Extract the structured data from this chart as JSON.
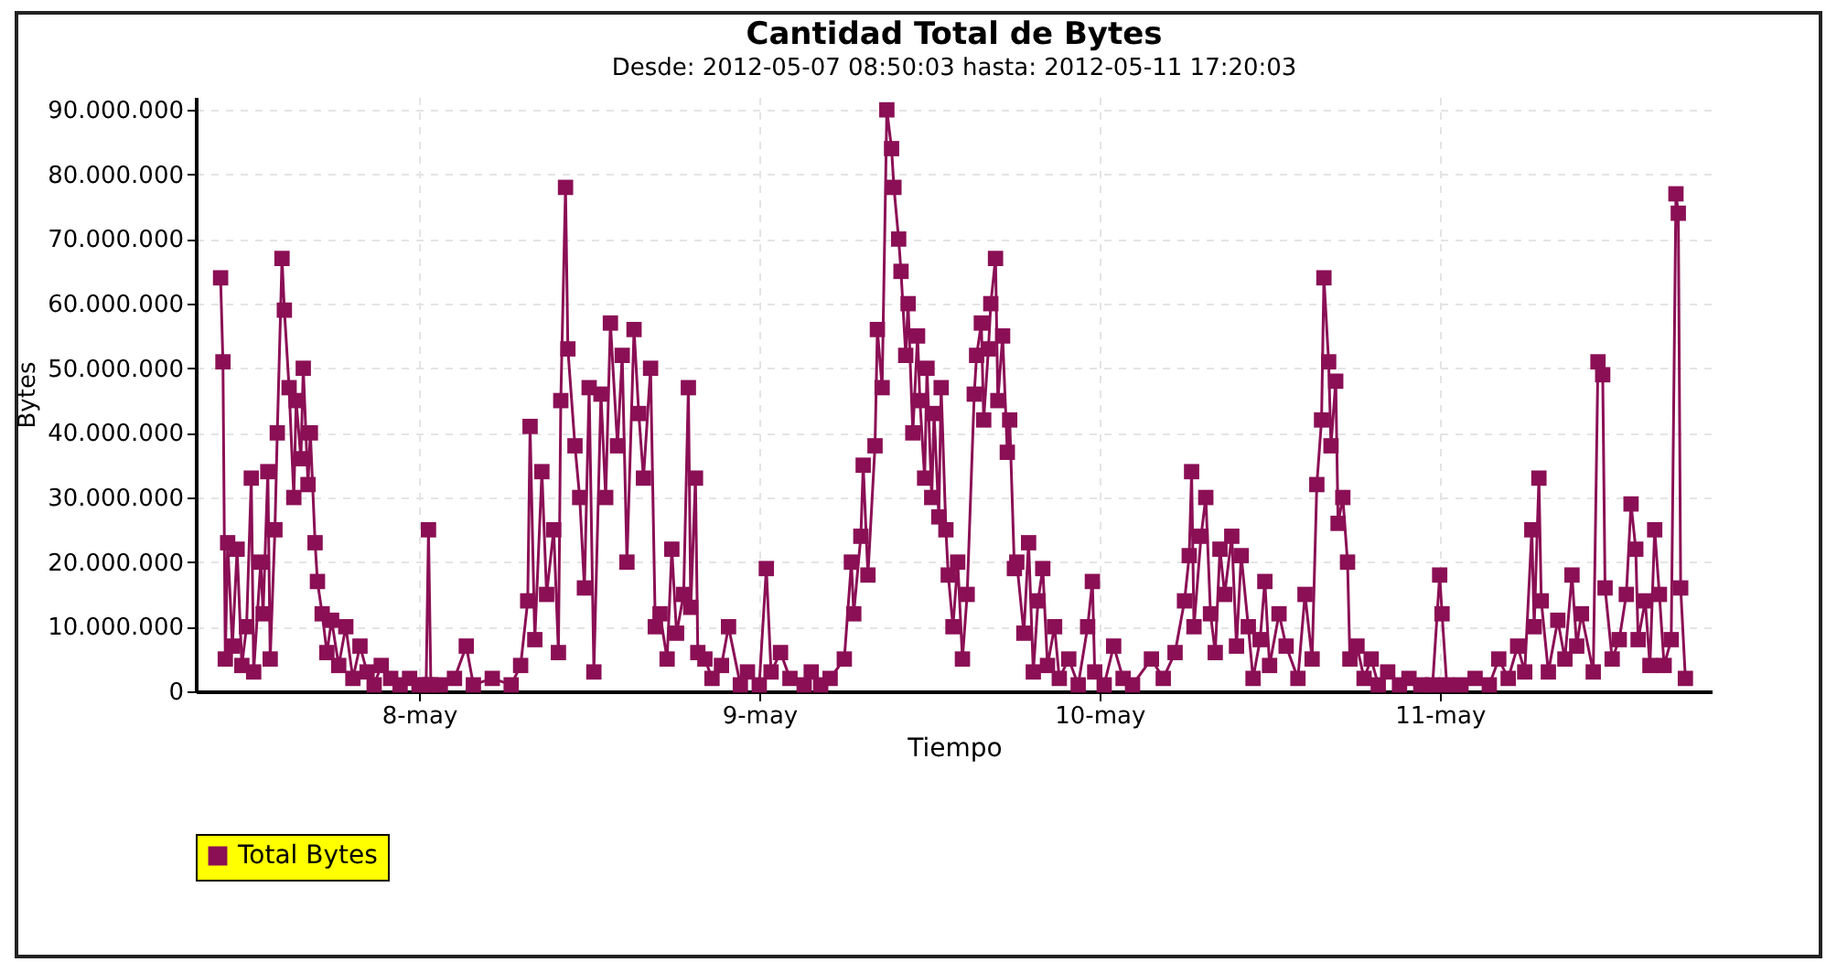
{
  "chart_data": {
    "type": "line",
    "title": "Cantidad Total de Bytes",
    "subtitle": "Desde:  2012-05-07 08:50:03  hasta:  2012-05-11 17:20:03",
    "xlabel": "Tiempo",
    "ylabel": "Bytes",
    "x": [
      "2012-05-07T10:00",
      "2012-05-07T10:10",
      "2012-05-07T10:20",
      "2012-05-07T10:30",
      "2012-05-07T10:50",
      "2012-05-07T11:10",
      "2012-05-07T11:30",
      "2012-05-07T11:50",
      "2012-05-07T12:10",
      "2012-05-07T12:20",
      "2012-05-07T12:50",
      "2012-05-07T13:00",
      "2012-05-07T13:20",
      "2012-05-07T13:30",
      "2012-05-07T13:50",
      "2012-05-07T14:00",
      "2012-05-07T14:20",
      "2012-05-07T14:30",
      "2012-05-07T14:50",
      "2012-05-07T15:10",
      "2012-05-07T15:20",
      "2012-05-07T15:40",
      "2012-05-07T15:50",
      "2012-05-07T16:10",
      "2012-05-07T16:20",
      "2012-05-07T16:40",
      "2012-05-07T16:50",
      "2012-05-07T17:10",
      "2012-05-07T17:30",
      "2012-05-07T17:50",
      "2012-05-07T18:20",
      "2012-05-07T18:50",
      "2012-05-07T19:20",
      "2012-05-07T19:50",
      "2012-05-07T20:20",
      "2012-05-07T20:50",
      "2012-05-07T21:20",
      "2012-05-07T22:00",
      "2012-05-07T22:40",
      "2012-05-07T23:20",
      "2012-05-08T00:00",
      "2012-05-08T00:30",
      "2012-05-08T00:40",
      "2012-05-08T00:50",
      "2012-05-08T01:30",
      "2012-05-08T02:30",
      "2012-05-08T03:20",
      "2012-05-08T03:50",
      "2012-05-08T05:10",
      "2012-05-08T06:30",
      "2012-05-08T07:10",
      "2012-05-08T07:40",
      "2012-05-08T07:50",
      "2012-05-08T08:10",
      "2012-05-08T08:40",
      "2012-05-08T09:00",
      "2012-05-08T09:30",
      "2012-05-08T09:50",
      "2012-05-08T10:00",
      "2012-05-08T10:20",
      "2012-05-08T10:30",
      "2012-05-08T11:00",
      "2012-05-08T11:20",
      "2012-05-08T11:40",
      "2012-05-08T12:00",
      "2012-05-08T12:20",
      "2012-05-08T12:50",
      "2012-05-08T13:10",
      "2012-05-08T13:30",
      "2012-05-08T14:00",
      "2012-05-08T14:20",
      "2012-05-08T14:40",
      "2012-05-08T15:10",
      "2012-05-08T15:30",
      "2012-05-08T15:50",
      "2012-05-08T16:20",
      "2012-05-08T16:40",
      "2012-05-08T17:00",
      "2012-05-08T17:30",
      "2012-05-08T17:50",
      "2012-05-08T18:10",
      "2012-05-08T18:40",
      "2012-05-08T19:00",
      "2012-05-08T19:10",
      "2012-05-08T19:30",
      "2012-05-08T19:40",
      "2012-05-08T20:10",
      "2012-05-08T20:40",
      "2012-05-08T21:20",
      "2012-05-08T21:50",
      "2012-05-08T22:40",
      "2012-05-08T23:10",
      "2012-05-09T00:00",
      "2012-05-09T00:30",
      "2012-05-09T00:50",
      "2012-05-09T01:30",
      "2012-05-09T02:10",
      "2012-05-09T03:10",
      "2012-05-09T03:40",
      "2012-05-09T04:20",
      "2012-05-09T05:00",
      "2012-05-09T06:00",
      "2012-05-09T06:30",
      "2012-05-09T06:40",
      "2012-05-09T07:10",
      "2012-05-09T07:20",
      "2012-05-09T07:40",
      "2012-05-09T08:10",
      "2012-05-09T08:20",
      "2012-05-09T08:40",
      "2012-05-09T09:00",
      "2012-05-09T09:20",
      "2012-05-09T09:30",
      "2012-05-09T09:50",
      "2012-05-09T10:00",
      "2012-05-09T10:20",
      "2012-05-09T10:30",
      "2012-05-09T10:50",
      "2012-05-09T11:10",
      "2012-05-09T11:20",
      "2012-05-09T11:40",
      "2012-05-09T11:50",
      "2012-05-09T12:10",
      "2012-05-09T12:20",
      "2012-05-09T12:40",
      "2012-05-09T12:50",
      "2012-05-09T13:10",
      "2012-05-09T13:20",
      "2012-05-09T13:40",
      "2012-05-09T14:00",
      "2012-05-09T14:20",
      "2012-05-09T14:40",
      "2012-05-09T15:10",
      "2012-05-09T15:20",
      "2012-05-09T15:40",
      "2012-05-09T15:50",
      "2012-05-09T16:10",
      "2012-05-09T16:20",
      "2012-05-09T16:40",
      "2012-05-09T16:50",
      "2012-05-09T17:10",
      "2012-05-09T17:30",
      "2012-05-09T17:40",
      "2012-05-09T18:00",
      "2012-05-09T18:10",
      "2012-05-09T18:40",
      "2012-05-09T19:00",
      "2012-05-09T19:20",
      "2012-05-09T19:40",
      "2012-05-09T20:00",
      "2012-05-09T20:20",
      "2012-05-09T20:50",
      "2012-05-09T21:10",
      "2012-05-09T21:50",
      "2012-05-09T22:30",
      "2012-05-09T23:10",
      "2012-05-09T23:30",
      "2012-05-09T23:40",
      "2012-05-10T00:20",
      "2012-05-10T01:00",
      "2012-05-10T01:40",
      "2012-05-10T02:20",
      "2012-05-10T03:40",
      "2012-05-10T04:30",
      "2012-05-10T05:20",
      "2012-05-10T06:00",
      "2012-05-10T06:20",
      "2012-05-10T06:30",
      "2012-05-10T06:40",
      "2012-05-10T07:10",
      "2012-05-10T07:30",
      "2012-05-10T07:50",
      "2012-05-10T08:10",
      "2012-05-10T08:30",
      "2012-05-10T08:50",
      "2012-05-10T09:20",
      "2012-05-10T09:40",
      "2012-05-10T10:00",
      "2012-05-10T10:30",
      "2012-05-10T10:50",
      "2012-05-10T11:20",
      "2012-05-10T11:40",
      "2012-05-10T12:00",
      "2012-05-10T12:40",
      "2012-05-10T13:10",
      "2012-05-10T14:00",
      "2012-05-10T14:30",
      "2012-05-10T15:00",
      "2012-05-10T15:20",
      "2012-05-10T15:40",
      "2012-05-10T15:50",
      "2012-05-10T16:10",
      "2012-05-10T16:20",
      "2012-05-10T16:40",
      "2012-05-10T16:50",
      "2012-05-10T17:10",
      "2012-05-10T17:30",
      "2012-05-10T17:40",
      "2012-05-10T18:10",
      "2012-05-10T18:40",
      "2012-05-10T19:10",
      "2012-05-10T19:40",
      "2012-05-10T20:20",
      "2012-05-10T21:10",
      "2012-05-10T21:50",
      "2012-05-10T22:40",
      "2012-05-10T23:30",
      "2012-05-11T00:00",
      "2012-05-11T00:10",
      "2012-05-11T00:30",
      "2012-05-11T01:30",
      "2012-05-11T02:30",
      "2012-05-11T03:30",
      "2012-05-11T04:10",
      "2012-05-11T04:50",
      "2012-05-11T05:30",
      "2012-05-11T06:00",
      "2012-05-11T06:30",
      "2012-05-11T06:40",
      "2012-05-11T07:00",
      "2012-05-11T07:10",
      "2012-05-11T07:40",
      "2012-05-11T08:20",
      "2012-05-11T08:50",
      "2012-05-11T09:20",
      "2012-05-11T09:40",
      "2012-05-11T10:00",
      "2012-05-11T10:50",
      "2012-05-11T11:10",
      "2012-05-11T11:30",
      "2012-05-11T11:40",
      "2012-05-11T12:10",
      "2012-05-11T12:40",
      "2012-05-11T13:10",
      "2012-05-11T13:30",
      "2012-05-11T13:50",
      "2012-05-11T14:00",
      "2012-05-11T14:30",
      "2012-05-11T14:50",
      "2012-05-11T15:10",
      "2012-05-11T15:30",
      "2012-05-11T15:50",
      "2012-05-11T16:20",
      "2012-05-11T16:40",
      "2012-05-11T16:50",
      "2012-05-11T17:00",
      "2012-05-11T17:20"
    ],
    "series": [
      {
        "name": "Total Bytes",
        "color": "#8b0f55",
        "values": [
          64000000,
          51000000,
          5000000,
          23000000,
          7000000,
          22000000,
          4000000,
          10000000,
          33000000,
          3000000,
          20000000,
          12000000,
          34000000,
          5000000,
          25000000,
          40000000,
          67000000,
          59000000,
          47000000,
          30000000,
          45000000,
          36000000,
          50000000,
          32000000,
          40000000,
          23000000,
          17000000,
          12000000,
          6000000,
          11000000,
          4000000,
          10000000,
          2000000,
          7000000,
          3000000,
          1000000,
          4000000,
          2000000,
          1000000,
          2000000,
          1000000,
          1000000,
          25000000,
          1000000,
          1000000,
          2000000,
          7000000,
          1000000,
          2000000,
          1000000,
          4000000,
          14000000,
          41000000,
          8000000,
          34000000,
          15000000,
          25000000,
          6000000,
          45000000,
          78000000,
          53000000,
          38000000,
          30000000,
          16000000,
          47000000,
          3000000,
          46000000,
          30000000,
          57000000,
          38000000,
          52000000,
          20000000,
          56000000,
          43000000,
          33000000,
          50000000,
          10000000,
          12000000,
          5000000,
          22000000,
          9000000,
          15000000,
          47000000,
          13000000,
          33000000,
          6000000,
          5000000,
          2000000,
          4000000,
          10000000,
          1000000,
          3000000,
          1000000,
          19000000,
          3000000,
          6000000,
          2000000,
          1000000,
          3000000,
          1000000,
          2000000,
          5000000,
          20000000,
          12000000,
          24000000,
          35000000,
          18000000,
          38000000,
          56000000,
          47000000,
          90000000,
          84000000,
          78000000,
          70000000,
          65000000,
          52000000,
          60000000,
          40000000,
          55000000,
          45000000,
          33000000,
          50000000,
          30000000,
          43000000,
          27000000,
          47000000,
          25000000,
          18000000,
          10000000,
          20000000,
          5000000,
          15000000,
          46000000,
          52000000,
          57000000,
          42000000,
          53000000,
          60000000,
          67000000,
          45000000,
          55000000,
          37000000,
          42000000,
          19000000,
          20000000,
          9000000,
          23000000,
          3000000,
          14000000,
          19000000,
          4000000,
          10000000,
          2000000,
          5000000,
          1000000,
          10000000,
          17000000,
          3000000,
          1000000,
          7000000,
          2000000,
          1000000,
          5000000,
          2000000,
          6000000,
          14000000,
          21000000,
          34000000,
          10000000,
          24000000,
          30000000,
          12000000,
          6000000,
          22000000,
          15000000,
          24000000,
          7000000,
          21000000,
          10000000,
          2000000,
          8000000,
          17000000,
          4000000,
          12000000,
          7000000,
          2000000,
          15000000,
          5000000,
          32000000,
          42000000,
          64000000,
          51000000,
          38000000,
          48000000,
          26000000,
          30000000,
          20000000,
          5000000,
          7000000,
          2000000,
          5000000,
          1000000,
          3000000,
          1000000,
          2000000,
          1000000,
          1000000,
          18000000,
          12000000,
          1000000,
          1000000,
          2000000,
          1000000,
          5000000,
          2000000,
          7000000,
          3000000,
          25000000,
          10000000,
          33000000,
          14000000,
          3000000,
          11000000,
          5000000,
          18000000,
          7000000,
          12000000,
          3000000,
          51000000,
          49000000,
          16000000,
          5000000,
          8000000,
          15000000,
          29000000,
          22000000,
          8000000,
          14000000,
          4000000,
          25000000,
          15000000,
          4000000,
          8000000,
          77000000,
          74000000,
          16000000,
          2000000
        ]
      }
    ],
    "xlim": [
      "2012-05-07T08:15",
      "2012-05-11T19:15"
    ],
    "xticks": [
      {
        "value": "2012-05-08",
        "label": "8-may"
      },
      {
        "value": "2012-05-09",
        "label": "9-may"
      },
      {
        "value": "2012-05-10",
        "label": "10-may"
      },
      {
        "value": "2012-05-11",
        "label": "11-may"
      }
    ],
    "ylim": [
      0,
      92000000
    ],
    "yticks": [
      {
        "value": 0,
        "label": "0"
      },
      {
        "value": 10000000,
        "label": "10.000.000"
      },
      {
        "value": 20000000,
        "label": "20.000.000"
      },
      {
        "value": 30000000,
        "label": "30.000.000"
      },
      {
        "value": 40000000,
        "label": "40.000.000"
      },
      {
        "value": 50000000,
        "label": "50.000.000"
      },
      {
        "value": 60000000,
        "label": "60.000.000"
      },
      {
        "value": 70000000,
        "label": "70.000.000"
      },
      {
        "value": 80000000,
        "label": "80.000.000"
      },
      {
        "value": 90000000,
        "label": "90.000.000"
      }
    ],
    "grid": true,
    "legend": "bottom",
    "marker": "square",
    "line_style": "solid"
  }
}
